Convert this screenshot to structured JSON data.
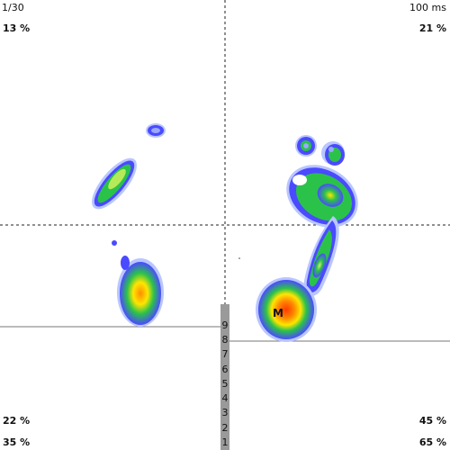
{
  "header": {
    "frame_counter": "1/30",
    "time_label": "100 ms"
  },
  "quadrants": {
    "top_left": "13 %",
    "top_right": "21 %",
    "bottom_left_upper": "22 %",
    "bottom_right_upper": "45 %",
    "bottom_left_lower": "35 %",
    "bottom_right_lower": "65 %"
  },
  "marker": {
    "label": "M"
  },
  "scale": {
    "ticks": [
      "9",
      "8",
      "7",
      "6",
      "5",
      "4",
      "3",
      "2",
      "1"
    ]
  },
  "colors": {
    "heat_blue": "#4040ff",
    "heat_green": "#2bc24a",
    "heat_yellow": "#ffe600",
    "heat_orange": "#ff8a00",
    "heat_red": "#ff3a00",
    "halo": "#b9c6ff",
    "scale_bar": "#9a9a9a"
  }
}
